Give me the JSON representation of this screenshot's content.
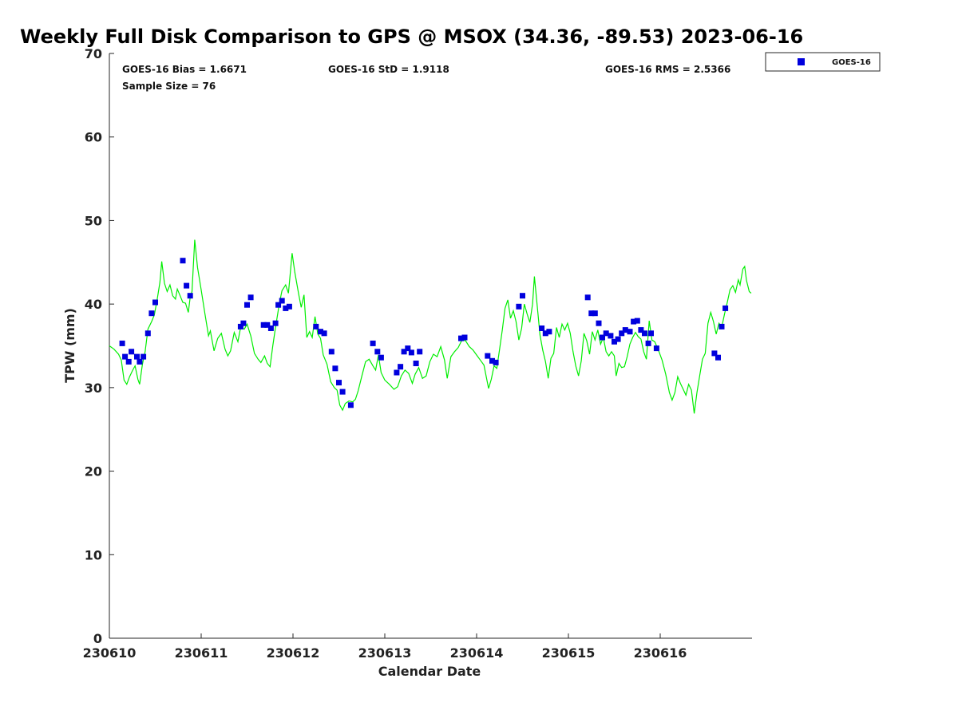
{
  "chart_data": {
    "type": "scatter",
    "title": "Weekly Full Disk Comparison to GPS @ MSOX (34.36, -89.53) 2023-06-16",
    "xlabel": "Calendar Date",
    "ylabel": "TPW (mm)",
    "xlim": [
      0,
      7
    ],
    "ylim": [
      0,
      70
    ],
    "x_ticks": [
      0,
      1,
      2,
      3,
      4,
      5,
      6
    ],
    "x_tick_labels": [
      "230610",
      "230611",
      "230612",
      "230613",
      "230614",
      "230615",
      "230616"
    ],
    "y_ticks": [
      0,
      10,
      20,
      30,
      40,
      50,
      60,
      70
    ],
    "y_tick_labels": [
      "0",
      "10",
      "20",
      "30",
      "40",
      "50",
      "60",
      "70"
    ],
    "grid": false,
    "legend_position": "top-right",
    "stats": {
      "bias": "GOES-16 Bias = 1.6671",
      "std": "GOES-16 StD = 1.9118",
      "rms": "GOES-16 RMS = 2.5366",
      "sample": "Sample Size = 76"
    },
    "series": [
      {
        "name": "GOES-16",
        "kind": "scatter",
        "marker": "square",
        "color": "#0000dd",
        "points": [
          [
            0.14,
            35.3
          ],
          [
            0.17,
            33.7
          ],
          [
            0.21,
            33.1
          ],
          [
            0.24,
            34.3
          ],
          [
            0.3,
            33.7
          ],
          [
            0.33,
            33.1
          ],
          [
            0.37,
            33.7
          ],
          [
            0.42,
            36.5
          ],
          [
            0.46,
            38.9
          ],
          [
            0.5,
            40.2
          ],
          [
            0.8,
            45.2
          ],
          [
            0.84,
            42.2
          ],
          [
            0.88,
            41.0
          ],
          [
            1.43,
            37.3
          ],
          [
            1.46,
            37.7
          ],
          [
            1.5,
            39.9
          ],
          [
            1.54,
            40.8
          ],
          [
            1.68,
            37.5
          ],
          [
            1.72,
            37.5
          ],
          [
            1.76,
            37.1
          ],
          [
            1.81,
            37.7
          ],
          [
            1.84,
            39.9
          ],
          [
            1.88,
            40.4
          ],
          [
            1.92,
            39.5
          ],
          [
            1.96,
            39.7
          ],
          [
            2.25,
            37.3
          ],
          [
            2.3,
            36.7
          ],
          [
            2.34,
            36.5
          ],
          [
            2.42,
            34.3
          ],
          [
            2.46,
            32.3
          ],
          [
            2.5,
            30.6
          ],
          [
            2.54,
            29.5
          ],
          [
            2.63,
            27.9
          ],
          [
            2.87,
            35.3
          ],
          [
            2.92,
            34.3
          ],
          [
            2.96,
            33.6
          ],
          [
            3.13,
            31.8
          ],
          [
            3.17,
            32.5
          ],
          [
            3.21,
            34.3
          ],
          [
            3.25,
            34.7
          ],
          [
            3.29,
            34.2
          ],
          [
            3.34,
            32.9
          ],
          [
            3.38,
            34.3
          ],
          [
            3.83,
            35.9
          ],
          [
            3.87,
            36.0
          ],
          [
            4.12,
            33.8
          ],
          [
            4.17,
            33.2
          ],
          [
            4.21,
            33.0
          ],
          [
            4.46,
            39.7
          ],
          [
            4.5,
            41.0
          ],
          [
            4.71,
            37.1
          ],
          [
            4.75,
            36.5
          ],
          [
            4.79,
            36.7
          ],
          [
            5.21,
            40.8
          ],
          [
            5.25,
            38.9
          ],
          [
            5.29,
            38.9
          ],
          [
            5.33,
            37.7
          ],
          [
            5.37,
            36.0
          ],
          [
            5.41,
            36.5
          ],
          [
            5.46,
            36.2
          ],
          [
            5.5,
            35.5
          ],
          [
            5.54,
            35.8
          ],
          [
            5.58,
            36.5
          ],
          [
            5.62,
            36.9
          ],
          [
            5.67,
            36.7
          ],
          [
            5.71,
            37.9
          ],
          [
            5.75,
            38.0
          ],
          [
            5.79,
            36.9
          ],
          [
            5.83,
            36.5
          ],
          [
            5.87,
            35.3
          ],
          [
            5.9,
            36.5
          ],
          [
            5.96,
            34.7
          ],
          [
            6.59,
            34.1
          ],
          [
            6.63,
            33.6
          ],
          [
            6.67,
            37.3
          ],
          [
            6.71,
            39.5
          ]
        ]
      },
      {
        "name": "GPS",
        "kind": "line",
        "color": "#00ee00",
        "points": [
          [
            0.0,
            35.0
          ],
          [
            0.05,
            34.6
          ],
          [
            0.1,
            34.0
          ],
          [
            0.13,
            33.3
          ],
          [
            0.16,
            30.9
          ],
          [
            0.19,
            30.4
          ],
          [
            0.22,
            31.3
          ],
          [
            0.25,
            32.0
          ],
          [
            0.28,
            32.6
          ],
          [
            0.31,
            31.0
          ],
          [
            0.33,
            30.4
          ],
          [
            0.36,
            32.8
          ],
          [
            0.39,
            34.3
          ],
          [
            0.42,
            37.0
          ],
          [
            0.46,
            37.9
          ],
          [
            0.49,
            38.7
          ],
          [
            0.52,
            40.5
          ],
          [
            0.55,
            42.6
          ],
          [
            0.57,
            45.1
          ],
          [
            0.6,
            42.5
          ],
          [
            0.63,
            41.5
          ],
          [
            0.66,
            42.3
          ],
          [
            0.69,
            41.0
          ],
          [
            0.72,
            40.6
          ],
          [
            0.74,
            41.8
          ],
          [
            0.77,
            41.0
          ],
          [
            0.8,
            40.2
          ],
          [
            0.83,
            40.1
          ],
          [
            0.86,
            39.0
          ],
          [
            0.88,
            40.8
          ],
          [
            0.9,
            41.5
          ],
          [
            0.93,
            47.7
          ],
          [
            0.96,
            44.4
          ],
          [
            1.0,
            41.7
          ],
          [
            1.04,
            38.9
          ],
          [
            1.08,
            36.2
          ],
          [
            1.1,
            36.8
          ],
          [
            1.14,
            34.4
          ],
          [
            1.18,
            35.9
          ],
          [
            1.22,
            36.5
          ],
          [
            1.26,
            34.6
          ],
          [
            1.29,
            33.8
          ],
          [
            1.32,
            34.4
          ],
          [
            1.36,
            36.6
          ],
          [
            1.4,
            35.5
          ],
          [
            1.43,
            37.2
          ],
          [
            1.47,
            37.0
          ],
          [
            1.5,
            37.6
          ],
          [
            1.54,
            36.2
          ],
          [
            1.58,
            34.1
          ],
          [
            1.62,
            33.4
          ],
          [
            1.65,
            33.0
          ],
          [
            1.69,
            33.8
          ],
          [
            1.72,
            32.9
          ],
          [
            1.75,
            32.5
          ],
          [
            1.78,
            35.0
          ],
          [
            1.81,
            37.2
          ],
          [
            1.85,
            40.0
          ],
          [
            1.88,
            41.6
          ],
          [
            1.92,
            42.3
          ],
          [
            1.95,
            41.3
          ],
          [
            1.99,
            46.1
          ],
          [
            2.02,
            43.8
          ],
          [
            2.06,
            41.3
          ],
          [
            2.09,
            39.6
          ],
          [
            2.12,
            41.1
          ],
          [
            2.15,
            36.0
          ],
          [
            2.18,
            36.7
          ],
          [
            2.21,
            36.0
          ],
          [
            2.24,
            38.5
          ],
          [
            2.27,
            36.4
          ],
          [
            2.3,
            35.9
          ],
          [
            2.33,
            33.9
          ],
          [
            2.37,
            32.8
          ],
          [
            2.41,
            30.7
          ],
          [
            2.45,
            30.0
          ],
          [
            2.48,
            29.7
          ],
          [
            2.51,
            27.9
          ],
          [
            2.54,
            27.3
          ],
          [
            2.57,
            28.1
          ],
          [
            2.61,
            28.4
          ],
          [
            2.65,
            28.3
          ],
          [
            2.68,
            28.6
          ],
          [
            2.71,
            29.6
          ],
          [
            2.75,
            31.4
          ],
          [
            2.79,
            33.1
          ],
          [
            2.83,
            33.4
          ],
          [
            2.87,
            32.6
          ],
          [
            2.9,
            32.1
          ],
          [
            2.93,
            33.9
          ],
          [
            2.96,
            31.8
          ],
          [
            3.0,
            30.9
          ],
          [
            3.05,
            30.4
          ],
          [
            3.1,
            29.8
          ],
          [
            3.14,
            30.1
          ],
          [
            3.18,
            31.4
          ],
          [
            3.22,
            32.1
          ],
          [
            3.26,
            31.7
          ],
          [
            3.3,
            30.5
          ],
          [
            3.33,
            31.6
          ],
          [
            3.37,
            32.4
          ],
          [
            3.41,
            31.1
          ],
          [
            3.45,
            31.4
          ],
          [
            3.49,
            33.1
          ],
          [
            3.53,
            34.0
          ],
          [
            3.57,
            33.7
          ],
          [
            3.61,
            34.9
          ],
          [
            3.65,
            33.3
          ],
          [
            3.68,
            31.1
          ],
          [
            3.72,
            33.7
          ],
          [
            3.76,
            34.3
          ],
          [
            3.8,
            34.8
          ],
          [
            3.84,
            35.7
          ],
          [
            3.88,
            35.6
          ],
          [
            3.92,
            34.9
          ],
          [
            3.96,
            34.5
          ],
          [
            4.0,
            33.9
          ],
          [
            4.04,
            33.3
          ],
          [
            4.08,
            32.7
          ],
          [
            4.11,
            31.0
          ],
          [
            4.13,
            29.9
          ],
          [
            4.16,
            31.0
          ],
          [
            4.19,
            32.6
          ],
          [
            4.22,
            32.3
          ],
          [
            4.25,
            34.6
          ],
          [
            4.28,
            36.9
          ],
          [
            4.31,
            39.5
          ],
          [
            4.34,
            40.5
          ],
          [
            4.37,
            38.3
          ],
          [
            4.4,
            39.2
          ],
          [
            4.43,
            37.9
          ],
          [
            4.46,
            35.7
          ],
          [
            4.49,
            37.1
          ],
          [
            4.52,
            40.0
          ],
          [
            4.55,
            38.8
          ],
          [
            4.58,
            37.8
          ],
          [
            4.61,
            40.0
          ],
          [
            4.63,
            43.3
          ],
          [
            4.66,
            39.8
          ],
          [
            4.69,
            36.3
          ],
          [
            4.72,
            34.5
          ],
          [
            4.75,
            33.1
          ],
          [
            4.78,
            31.1
          ],
          [
            4.81,
            33.5
          ],
          [
            4.84,
            34.1
          ],
          [
            4.87,
            37.2
          ],
          [
            4.9,
            36.0
          ],
          [
            4.93,
            37.6
          ],
          [
            4.96,
            36.9
          ],
          [
            4.99,
            37.7
          ],
          [
            5.02,
            36.5
          ],
          [
            5.05,
            34.3
          ],
          [
            5.08,
            32.6
          ],
          [
            5.11,
            31.4
          ],
          [
            5.14,
            33.2
          ],
          [
            5.17,
            36.5
          ],
          [
            5.2,
            35.6
          ],
          [
            5.23,
            34.0
          ],
          [
            5.26,
            36.7
          ],
          [
            5.29,
            35.7
          ],
          [
            5.32,
            36.9
          ],
          [
            5.35,
            35.2
          ],
          [
            5.38,
            36.0
          ],
          [
            5.41,
            34.3
          ],
          [
            5.44,
            33.8
          ],
          [
            5.47,
            34.3
          ],
          [
            5.5,
            33.8
          ],
          [
            5.52,
            31.4
          ],
          [
            5.55,
            32.9
          ],
          [
            5.58,
            32.4
          ],
          [
            5.61,
            32.5
          ],
          [
            5.64,
            33.7
          ],
          [
            5.67,
            35.2
          ],
          [
            5.7,
            36.0
          ],
          [
            5.73,
            36.6
          ],
          [
            5.76,
            36.1
          ],
          [
            5.79,
            35.8
          ],
          [
            5.82,
            34.3
          ],
          [
            5.85,
            33.4
          ],
          [
            5.88,
            38.0
          ],
          [
            5.91,
            35.7
          ],
          [
            5.94,
            35.5
          ],
          [
            5.98,
            34.5
          ],
          [
            6.02,
            33.3
          ],
          [
            6.06,
            31.6
          ],
          [
            6.1,
            29.4
          ],
          [
            6.13,
            28.5
          ],
          [
            6.16,
            29.4
          ],
          [
            6.19,
            31.3
          ],
          [
            6.22,
            30.5
          ],
          [
            6.25,
            29.8
          ],
          [
            6.28,
            29.1
          ],
          [
            6.31,
            30.4
          ],
          [
            6.34,
            29.7
          ],
          [
            6.37,
            26.9
          ],
          [
            6.4,
            29.4
          ],
          [
            6.43,
            31.4
          ],
          [
            6.46,
            33.4
          ],
          [
            6.49,
            34.1
          ],
          [
            6.52,
            37.7
          ],
          [
            6.55,
            39.0
          ],
          [
            6.58,
            37.9
          ],
          [
            6.61,
            36.4
          ],
          [
            6.64,
            37.7
          ],
          [
            6.67,
            37.2
          ],
          [
            6.7,
            38.8
          ],
          [
            6.73,
            40.2
          ],
          [
            6.76,
            41.7
          ],
          [
            6.79,
            42.2
          ],
          [
            6.82,
            41.4
          ],
          [
            6.85,
            42.9
          ],
          [
            6.87,
            42.3
          ],
          [
            6.9,
            44.2
          ],
          [
            6.92,
            44.5
          ],
          [
            6.94,
            42.8
          ],
          [
            6.97,
            41.5
          ],
          [
            6.99,
            41.3
          ]
        ]
      }
    ]
  }
}
